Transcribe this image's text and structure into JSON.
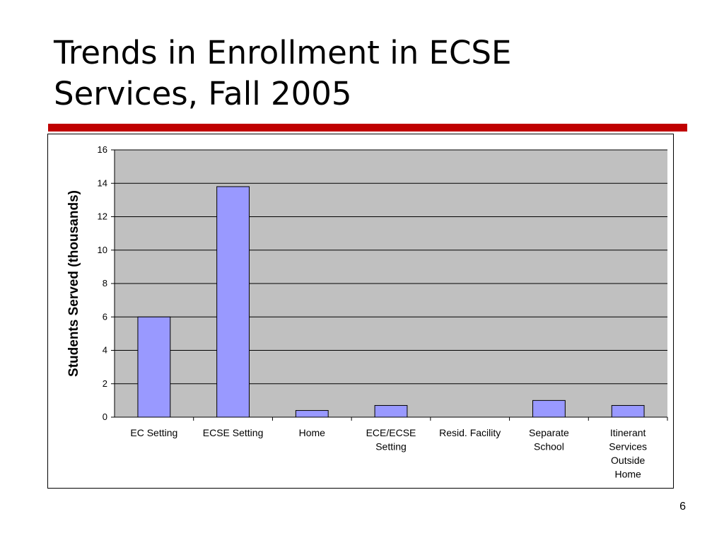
{
  "slide": {
    "title_line1": "Trends in Enrollment in ECSE",
    "title_line2": "Services, Fall 2005",
    "page_number": "6"
  },
  "colors": {
    "accent_rule": "#c00000",
    "plot_background": "#c0c0c0",
    "bar_fill": "#9999ff",
    "bar_stroke": "#000000"
  },
  "chart_data": {
    "type": "bar",
    "title": "",
    "xlabel": "",
    "ylabel": "Students Served (thousands)",
    "ylim": [
      0,
      16
    ],
    "yticks": [
      0,
      2,
      4,
      6,
      8,
      10,
      12,
      14,
      16
    ],
    "grid": true,
    "legend": "none",
    "categories": [
      [
        "EC Setting"
      ],
      [
        "ECSE Setting"
      ],
      [
        "Home"
      ],
      [
        "ECE/ECSE",
        "Setting"
      ],
      [
        "Resid. Facility"
      ],
      [
        "Separate",
        "School"
      ],
      [
        "Itinerant",
        "Services",
        "Outside",
        "Home"
      ]
    ],
    "values": [
      6.0,
      13.8,
      0.4,
      0.7,
      0.0,
      1.0,
      0.7
    ]
  }
}
